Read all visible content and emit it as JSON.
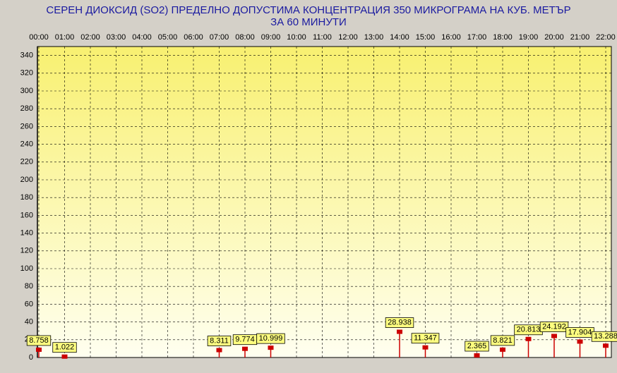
{
  "chart_data": {
    "type": "stem",
    "title": "СЕРЕН ДИОКСИД  (SO2)  ПРЕДЕЛНО ДОПУСТИМА КОНЦЕНТРАЦИЯ 350 МИКРОГРАМА  НА КУБ. МЕТЪР",
    "subtitle": "ЗА 60 МИНУТИ",
    "categories": [
      "00:00",
      "01:00",
      "02:00",
      "03:00",
      "04:00",
      "05:00",
      "06:00",
      "07:00",
      "08:00",
      "09:00",
      "10:00",
      "11:00",
      "12:00",
      "13:00",
      "14:00",
      "15:00",
      "16:00",
      "17:00",
      "18:00",
      "19:00",
      "20:00",
      "21:00",
      "22:00"
    ],
    "values": [
      8.758,
      1.022,
      null,
      null,
      null,
      null,
      null,
      8.311,
      9.774,
      10.999,
      null,
      null,
      null,
      null,
      28.938,
      11.347,
      null,
      2.365,
      8.821,
      20.813,
      24.192,
      17.904,
      13.288
    ],
    "color": "#cc0000",
    "ylim": [
      0,
      350
    ],
    "yticks": [
      0,
      20,
      40,
      60,
      80,
      100,
      120,
      140,
      160,
      180,
      200,
      220,
      240,
      260,
      280,
      300,
      320,
      340
    ],
    "grid": true
  }
}
